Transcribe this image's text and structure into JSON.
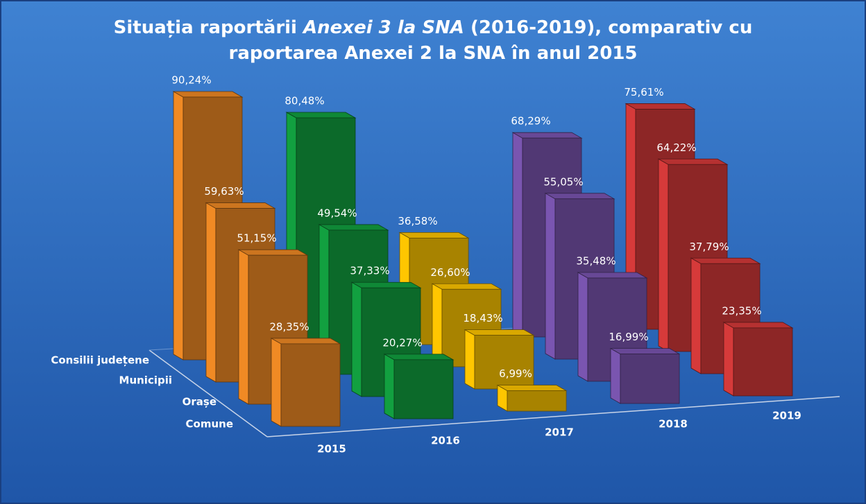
{
  "chart_data": {
    "type": "bar3d",
    "title_lines": [
      [
        {
          "text": "Situația raportării "
        },
        {
          "text": "Anexei 3 la SNA",
          "italic": true
        },
        {
          "text": " (2016-2019), comparativ cu"
        }
      ],
      [
        {
          "text": "raportarea Anexei 2 la SNA în anul 2015"
        }
      ]
    ],
    "categories": [
      "2015",
      "2016",
      "2017",
      "2018",
      "2019"
    ],
    "colors": [
      "#f08a24",
      "#12a040",
      "#ffc600",
      "#7a55b0",
      "#d63a3a"
    ],
    "rows": [
      {
        "name": "Consilii județene",
        "values": [
          90.24,
          80.48,
          36.58,
          68.29,
          75.61
        ],
        "value_labels": [
          "90,24%",
          "80,48%",
          "36,58%",
          "68,29%",
          "75,61%"
        ]
      },
      {
        "name": "Municipii",
        "values": [
          59.63,
          49.54,
          26.6,
          55.05,
          64.22
        ],
        "value_labels": [
          "59,63%",
          "49,54%",
          "26,60%",
          "55,05%",
          "64,22%"
        ]
      },
      {
        "name": "Orașe",
        "values": [
          51.15,
          37.33,
          18.43,
          35.48,
          37.79
        ],
        "value_labels": [
          "51,15%",
          "37,33%",
          "18,43%",
          "35,48%",
          "37,79%"
        ]
      },
      {
        "name": "Comune",
        "values": [
          28.35,
          20.27,
          6.99,
          16.99,
          23.35
        ],
        "value_labels": [
          "28,35%",
          "20,27%",
          "6,99%",
          "16,99%",
          "23,35%"
        ]
      }
    ]
  }
}
